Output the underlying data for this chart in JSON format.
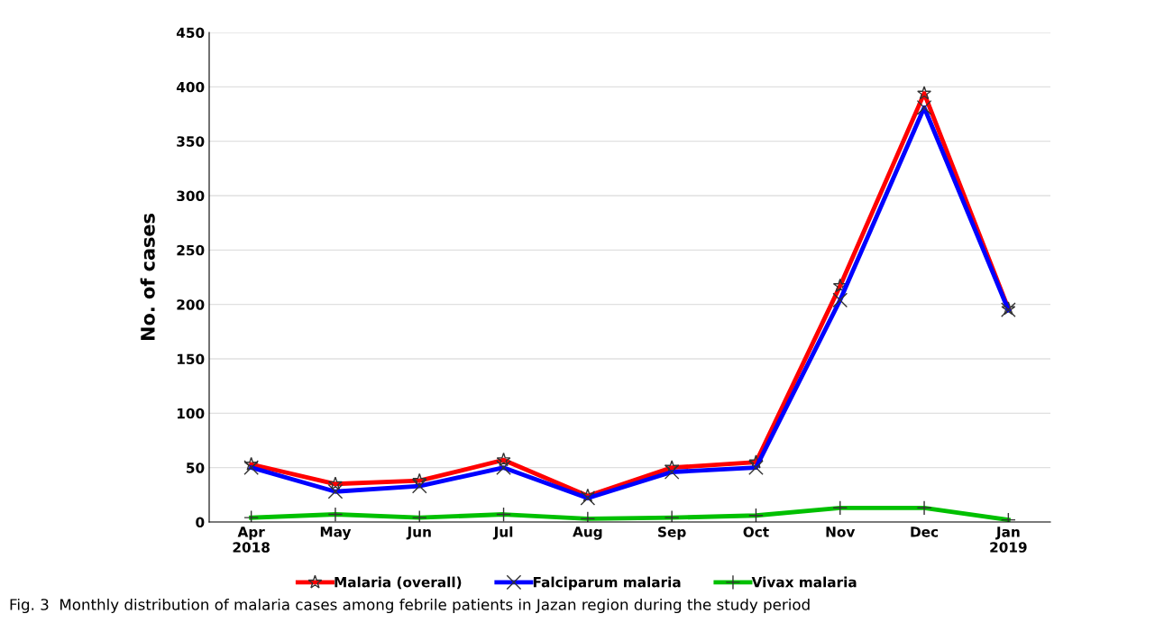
{
  "chart_data": {
    "type": "line",
    "categories": [
      "Apr\n2018",
      "May",
      "Jun",
      "Jul",
      "Aug",
      "Sep",
      "Oct",
      "Nov",
      "Dec",
      "Jan\n2019"
    ],
    "series": [
      {
        "name": "Malaria (overall)",
        "color": "#ff0000",
        "marker": "star",
        "values": [
          53,
          35,
          38,
          57,
          24,
          50,
          55,
          217,
          394,
          196
        ]
      },
      {
        "name": "Falciparum malaria",
        "color": "#0000ff",
        "marker": "cross",
        "values": [
          50,
          28,
          33,
          50,
          22,
          46,
          50,
          204,
          381,
          195
        ]
      },
      {
        "name": "Vivax malaria",
        "color": "#00c000",
        "marker": "plus",
        "values": [
          4,
          7,
          4,
          7,
          3,
          4,
          6,
          13,
          13,
          2
        ]
      }
    ],
    "ylabel": "No. of cases",
    "ylim": [
      0,
      450
    ],
    "yticks": [
      0,
      50,
      100,
      150,
      200,
      250,
      300,
      350,
      400,
      450
    ],
    "grid": "y",
    "legend": "bottom",
    "annotations": [
      "Fig. 3  Monthly distribution of malaria cases among febrile patients in Jazan region during the study period"
    ]
  }
}
